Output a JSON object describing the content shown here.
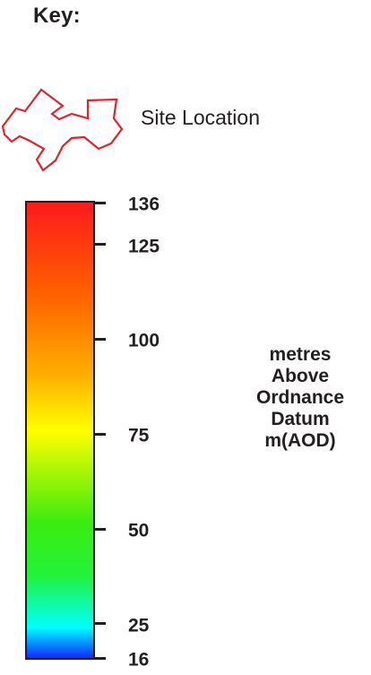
{
  "key": {
    "title": "Key:"
  },
  "site": {
    "label": "Site Location",
    "outline_color": "#d8262e"
  },
  "scale": {
    "min": 16,
    "max": 136,
    "ticks": [
      {
        "value": 136,
        "label": "136"
      },
      {
        "value": 125,
        "label": "125"
      },
      {
        "value": 100,
        "label": "100"
      },
      {
        "value": 75,
        "label": "75"
      },
      {
        "value": 50,
        "label": "50"
      },
      {
        "value": 25,
        "label": "25"
      },
      {
        "value": 16,
        "label": "16"
      }
    ],
    "gradient": [
      {
        "value": 136,
        "color": "#ff1a1a"
      },
      {
        "value": 112,
        "color": "#ff6000"
      },
      {
        "value": 90,
        "color": "#ffb000"
      },
      {
        "value": 76,
        "color": "#ffff00"
      },
      {
        "value": 52,
        "color": "#3cec0f"
      },
      {
        "value": 38,
        "color": "#22f23a"
      },
      {
        "value": 24,
        "color": "#00ffff"
      },
      {
        "value": 16,
        "color": "#1428ff"
      }
    ]
  },
  "unit": {
    "lines": [
      "metres",
      "Above",
      "Ordnance",
      "Datum",
      "m(AOD)"
    ]
  }
}
